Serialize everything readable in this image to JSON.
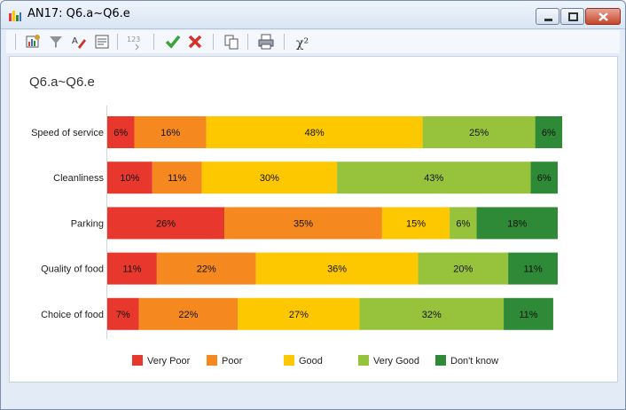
{
  "window": {
    "title": "AN17: Q6.a~Q6.e"
  },
  "toolbar": {
    "buttons": [
      {
        "name": "chart-settings-icon"
      },
      {
        "name": "filter-icon"
      },
      {
        "name": "highlight-icon"
      },
      {
        "name": "report-icon"
      },
      {
        "name": "number-format-icon",
        "label": "123"
      },
      {
        "name": "confirm-icon"
      },
      {
        "name": "cancel-icon"
      },
      {
        "name": "copy-icon"
      },
      {
        "name": "print-icon"
      },
      {
        "name": "chi-square-icon",
        "label": "χ²"
      }
    ]
  },
  "colors": {
    "very_poor": "#e8382e",
    "poor": "#f5891f",
    "good": "#fdc800",
    "very_good": "#97c23b",
    "dont_know": "#2e8a37"
  },
  "chart_data": {
    "type": "bar",
    "orientation": "horizontal",
    "stacked": "percent",
    "title": "Q6.a~Q6.e",
    "categories": [
      "Speed of service",
      "Cleanliness",
      "Parking",
      "Quality of food",
      "Choice of food"
    ],
    "series": [
      {
        "name": "Very Poor",
        "color": "#e8382e",
        "values": [
          6,
          10,
          26,
          11,
          7
        ]
      },
      {
        "name": "Poor",
        "color": "#f5891f",
        "values": [
          16,
          11,
          35,
          22,
          22
        ]
      },
      {
        "name": "Good",
        "color": "#fdc800",
        "values": [
          48,
          30,
          15,
          36,
          27
        ]
      },
      {
        "name": "Very Good",
        "color": "#97c23b",
        "values": [
          25,
          43,
          6,
          20,
          32
        ]
      },
      {
        "name": "Don't know",
        "color": "#2e8a37",
        "values": [
          6,
          6,
          18,
          11,
          11
        ]
      }
    ],
    "data_labels": [
      [
        "6%",
        "16%",
        "48%",
        "25%",
        "6%"
      ],
      [
        "10%",
        "11%",
        "30%",
        "43%",
        "6%"
      ],
      [
        "26%",
        "35%",
        "15%",
        "6%",
        "18%"
      ],
      [
        "11%",
        "22%",
        "36%",
        "20%",
        "11%"
      ],
      [
        "7%",
        "22%",
        "27%",
        "32%",
        "11%"
      ]
    ],
    "legend": "bottom",
    "grid": false
  }
}
